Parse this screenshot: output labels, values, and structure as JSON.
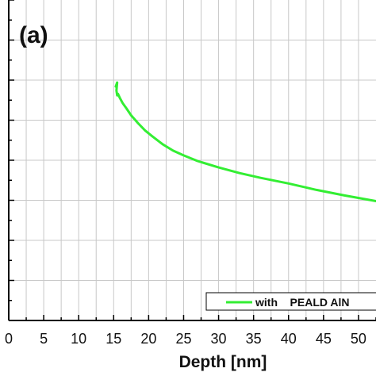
{
  "panel_label": "(a)",
  "colors": {
    "series": "#33ee33",
    "grid": "#c8c8c8",
    "axis": "#000000"
  },
  "chart_data": {
    "type": "line",
    "title": "",
    "xlabel": "Depth [nm]",
    "ylabel": "",
    "xlim": [
      0,
      52.5
    ],
    "ylim": [
      0,
      8
    ],
    "x_ticks": [
      0,
      5,
      10,
      15,
      20,
      25,
      30,
      35,
      40,
      45,
      50
    ],
    "grid": true,
    "legend_position": "bottom-right",
    "series": [
      {
        "name": "with    PEALD AlN",
        "color": "#33ee33",
        "x": [
          15.3,
          15.5,
          15.4,
          15.5,
          15.6,
          15.9,
          16.3,
          16.8,
          17.5,
          18.5,
          19.5,
          20.5,
          22,
          23.5,
          25,
          27,
          30,
          33,
          36,
          40,
          44,
          48,
          52.5
        ],
        "y": [
          5.84,
          5.94,
          5.74,
          5.62,
          5.66,
          5.55,
          5.42,
          5.3,
          5.12,
          4.92,
          4.74,
          4.6,
          4.4,
          4.24,
          4.12,
          3.98,
          3.82,
          3.68,
          3.56,
          3.42,
          3.26,
          3.12,
          2.98
        ]
      }
    ]
  }
}
